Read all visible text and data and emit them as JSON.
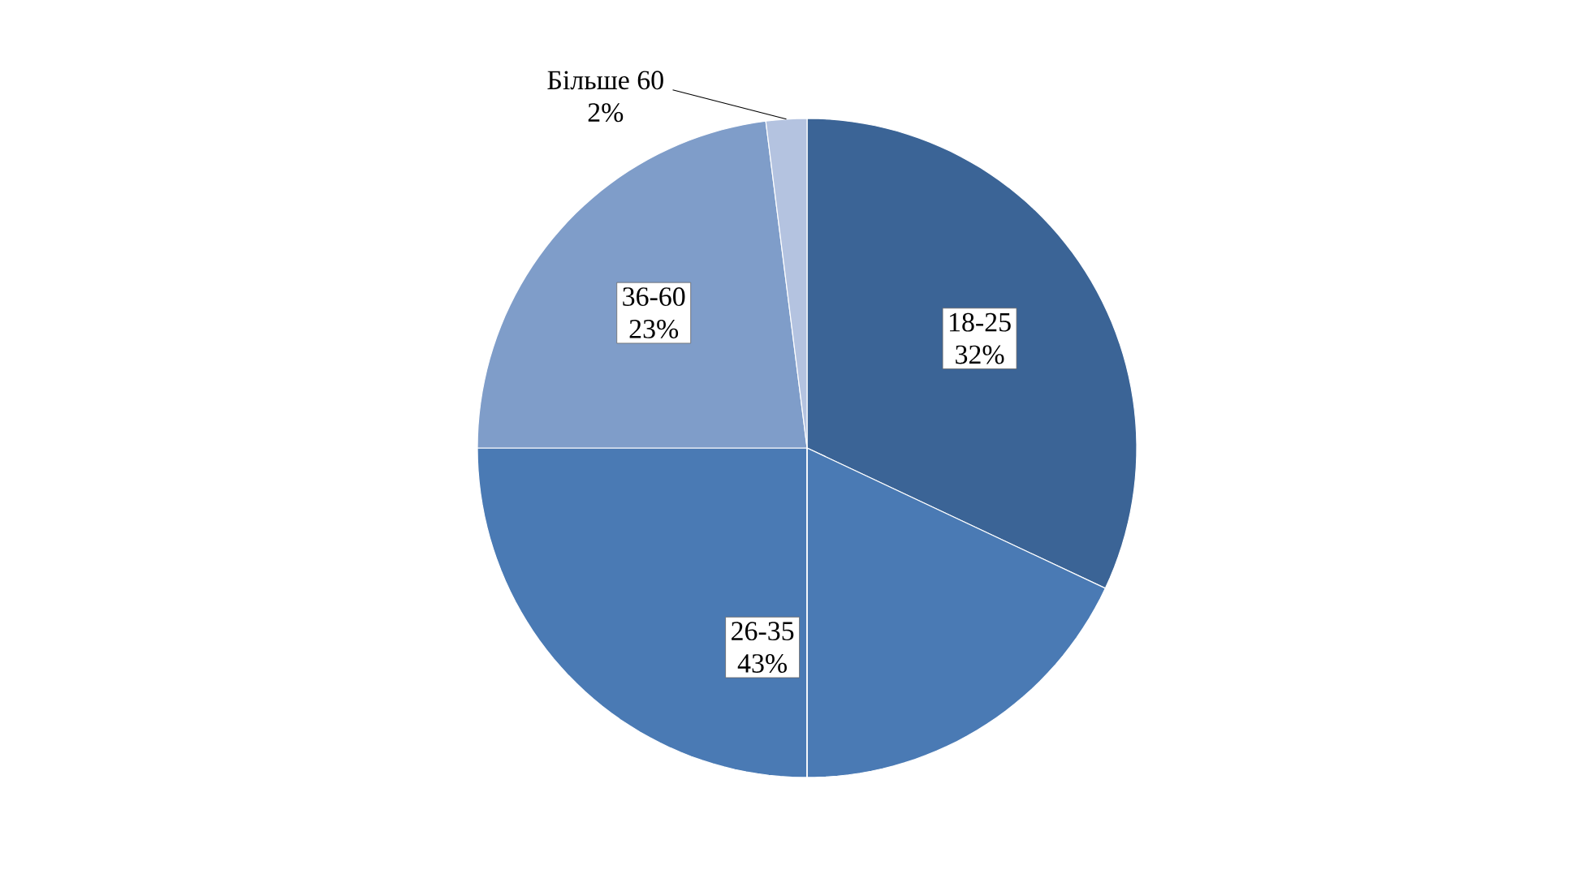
{
  "chart_data": {
    "type": "pie",
    "categories": [
      "18-25",
      "26-35",
      "36-60",
      "Більше 60"
    ],
    "values": [
      32,
      43,
      23,
      2
    ],
    "value_labels": [
      "32%",
      "43%",
      "23%",
      "2%"
    ],
    "colors": [
      "#3b6496",
      "#4a7ab4",
      "#7f9dc9",
      "#b4c3e0"
    ]
  }
}
